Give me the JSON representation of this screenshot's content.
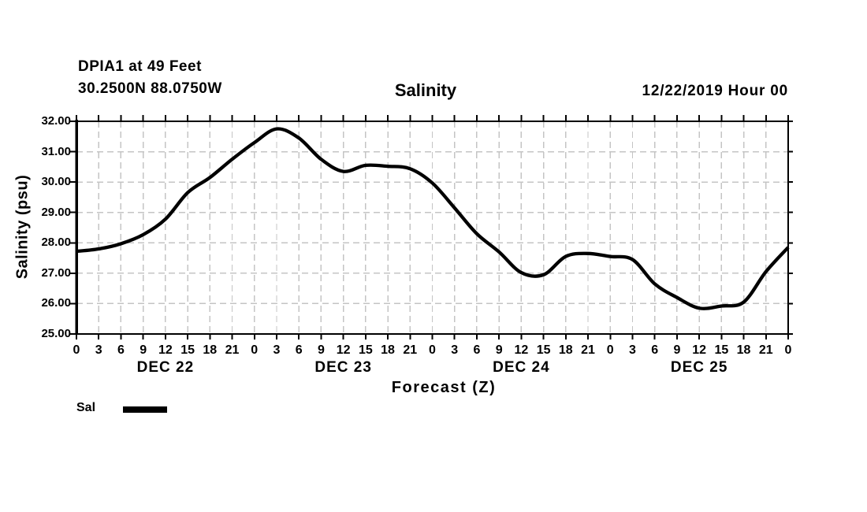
{
  "header": {
    "station": "DPIA1 at 49 Feet",
    "coordinates": "30.2500N 88.0750W",
    "title": "Salinity",
    "run_datetime": "12/22/2019 Hour 00"
  },
  "chart_data": {
    "type": "line",
    "title": "Salinity",
    "xlabel": "Forecast (Z)",
    "ylabel": "Salinity (psu)",
    "ylim": [
      25.0,
      32.0
    ],
    "ytick_step": 1.0,
    "ytick_labels": [
      "32.00",
      "31.00",
      "30.00",
      "29.00",
      "28.00",
      "27.00",
      "26.00",
      "25.00"
    ],
    "xlim_hours": [
      0,
      96
    ],
    "xtick_hours": [
      0,
      3,
      6,
      9,
      12,
      15,
      18,
      21,
      24,
      27,
      30,
      33,
      36,
      39,
      42,
      45,
      48,
      51,
      54,
      57,
      60,
      63,
      66,
      69,
      72,
      75,
      78,
      81,
      84,
      87,
      90,
      93,
      96
    ],
    "xtick_labels": [
      "0",
      "3",
      "6",
      "9",
      "12",
      "15",
      "18",
      "21",
      "0",
      "3",
      "6",
      "9",
      "12",
      "15",
      "18",
      "21",
      "0",
      "3",
      "6",
      "9",
      "12",
      "15",
      "18",
      "21",
      "0",
      "3",
      "6",
      "9",
      "12",
      "15",
      "18",
      "21",
      "0"
    ],
    "day_labels": [
      {
        "label": "DEC 22",
        "center_hour": 12
      },
      {
        "label": "DEC 23",
        "center_hour": 36
      },
      {
        "label": "DEC 24",
        "center_hour": 60
      },
      {
        "label": "DEC 25",
        "center_hour": 84
      }
    ],
    "grid": true,
    "legend": {
      "label": "Sal",
      "position": "bottom-left"
    },
    "series": [
      {
        "name": "Sal",
        "color": "#000000",
        "x_hours": [
          0,
          3,
          6,
          9,
          12,
          15,
          18,
          21,
          24,
          27,
          30,
          33,
          36,
          39,
          42,
          45,
          48,
          51,
          54,
          57,
          60,
          63,
          66,
          69,
          72,
          75,
          78,
          81,
          84,
          87,
          90,
          93,
          96
        ],
        "values": [
          27.72,
          27.8,
          27.97,
          28.27,
          28.78,
          29.65,
          30.15,
          30.75,
          31.3,
          31.75,
          31.45,
          30.75,
          30.35,
          30.55,
          30.52,
          30.44,
          29.97,
          29.15,
          28.3,
          27.7,
          27.02,
          26.95,
          27.55,
          27.65,
          27.55,
          27.45,
          26.65,
          26.2,
          25.85,
          25.92,
          26.05,
          27.05,
          27.85
        ]
      }
    ]
  },
  "colors": {
    "line": "#000000",
    "grid": "#c4c4c4",
    "frame": "#000000",
    "text": "#000000",
    "background": "#ffffff"
  }
}
